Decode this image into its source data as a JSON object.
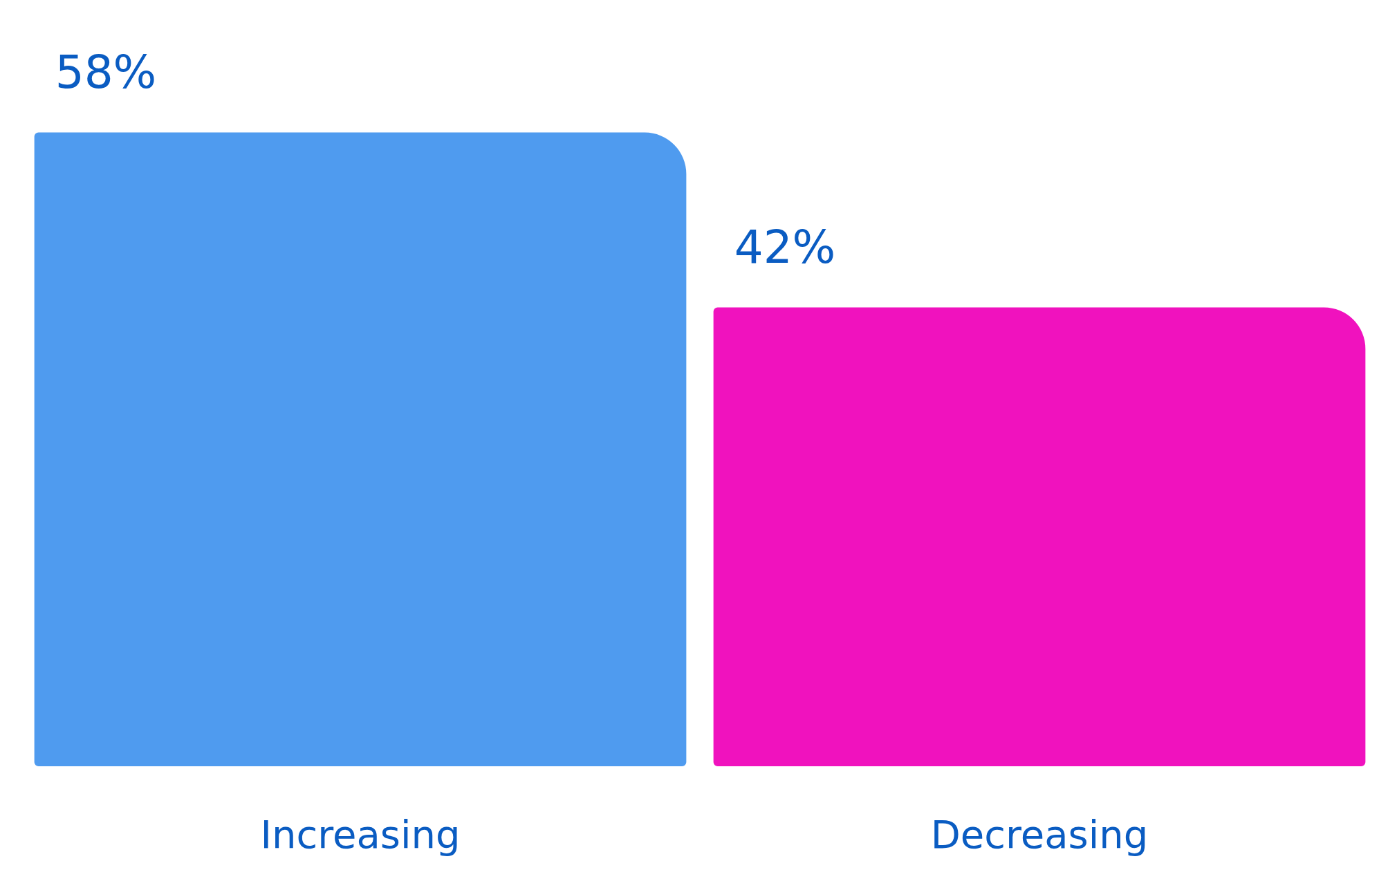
{
  "chart_data": {
    "type": "bar",
    "categories": [
      "Increasing",
      "Decreasing"
    ],
    "values": [
      58,
      42
    ],
    "colors": [
      "#4f9bef",
      "#f012be"
    ],
    "value_labels": [
      "58%",
      "42%"
    ]
  }
}
